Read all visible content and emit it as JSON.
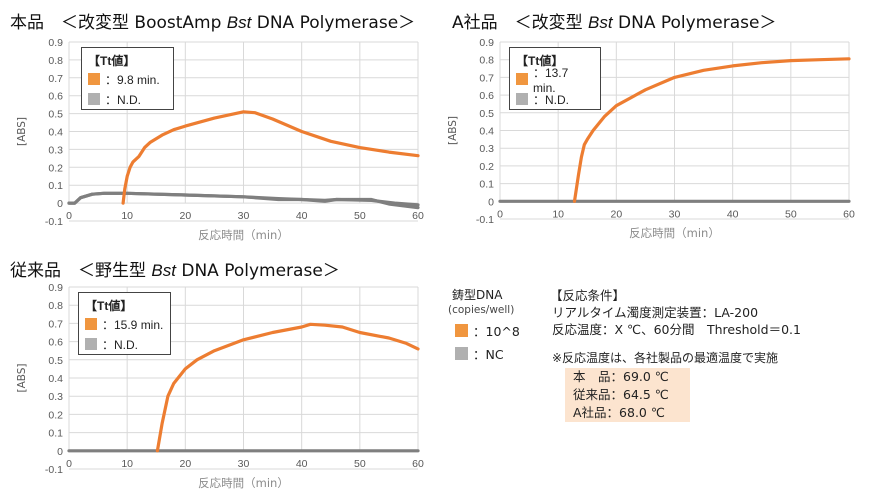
{
  "colors": {
    "sample": "#ed7d31",
    "nc": "#7f7f7f",
    "legend_sample": "#f0963f",
    "legend_nc": "#b0b0b0",
    "grid": "#d9d9d9",
    "temp_box": "#fce4cf"
  },
  "chart_data": [
    {
      "type": "line",
      "title_prefix": "本品　＜改変型 BoostAmp ",
      "title_italic": "Bst",
      "title_suffix": " DNA Polymerase＞",
      "xlabel": "反応時間（min）",
      "ylabel": "[ABS]",
      "xlim": [
        0,
        60
      ],
      "ylim": [
        -0.1,
        0.9
      ],
      "xticks": [
        0,
        10,
        20,
        30,
        40,
        50,
        60
      ],
      "yticks": [
        -0.1,
        0,
        0.1,
        0.2,
        0.3,
        0.4,
        0.5,
        0.6,
        0.7,
        0.8,
        0.9
      ],
      "grid": true,
      "legend": {
        "title": "【Tt値】",
        "placement": "top-left",
        "entries": [
          "：9.8 min.",
          "：N.D."
        ]
      },
      "series": [
        {
          "name": "10^8",
          "color": "#ed7d31",
          "x": [
            9.3,
            9.6,
            10,
            10.5,
            11,
            12,
            13,
            14,
            16,
            18,
            20,
            25,
            30,
            32,
            35,
            40,
            45,
            50,
            55,
            60
          ],
          "y": [
            0,
            0.08,
            0.15,
            0.2,
            0.23,
            0.26,
            0.31,
            0.34,
            0.38,
            0.41,
            0.43,
            0.475,
            0.51,
            0.505,
            0.47,
            0.4,
            0.345,
            0.31,
            0.285,
            0.265
          ]
        },
        {
          "name": "NC",
          "color": "#7f7f7f",
          "x": [
            0,
            1,
            2,
            4,
            6,
            10,
            20,
            30,
            36,
            40,
            44,
            46,
            52,
            56,
            60
          ],
          "y": [
            0,
            0,
            0.03,
            0.05,
            0.055,
            0.055,
            0.045,
            0.035,
            0.02,
            0.02,
            0.01,
            0.02,
            0.015,
            0,
            -0.01
          ]
        },
        {
          "name": "NC",
          "color": "#7f7f7f",
          "x": [
            0,
            1,
            2,
            4,
            6,
            10,
            20,
            30,
            36,
            40,
            44,
            46,
            52,
            55,
            60
          ],
          "y": [
            0,
            0,
            0.03,
            0.05,
            0.055,
            0.055,
            0.045,
            0.035,
            0.025,
            0.02,
            0.015,
            0.02,
            0.02,
            -0.005,
            -0.025
          ]
        }
      ]
    },
    {
      "type": "line",
      "title_prefix": "A社品　＜改変型 ",
      "title_italic": "Bst",
      "title_suffix": " DNA Polymerase＞",
      "xlabel": "反応時間（min）",
      "ylabel": "[ABS]",
      "xlim": [
        0,
        60
      ],
      "ylim": [
        -0.1,
        0.9
      ],
      "xticks": [
        0,
        10,
        20,
        30,
        40,
        50,
        60
      ],
      "yticks": [
        -0.1,
        0,
        0.1,
        0.2,
        0.3,
        0.4,
        0.5,
        0.6,
        0.7,
        0.8,
        0.9
      ],
      "grid": true,
      "legend": {
        "title": "【Tt値】",
        "placement": "top-left",
        "entries": [
          "：13.7 min.",
          "：N.D."
        ]
      },
      "series": [
        {
          "name": "10^8",
          "color": "#ed7d31",
          "x": [
            12.8,
            13.5,
            14,
            14.5,
            15,
            16,
            18,
            20,
            25,
            30,
            35,
            40,
            45,
            50,
            55,
            60
          ],
          "y": [
            0,
            0.15,
            0.25,
            0.32,
            0.35,
            0.4,
            0.48,
            0.54,
            0.63,
            0.7,
            0.74,
            0.765,
            0.783,
            0.795,
            0.8,
            0.805
          ]
        },
        {
          "name": "NC",
          "color": "#7f7f7f",
          "x": [
            0,
            60
          ],
          "y": [
            0,
            0
          ]
        }
      ]
    },
    {
      "type": "line",
      "title_prefix": "従来品　＜野生型 ",
      "title_italic": "Bst",
      "title_suffix": " DNA Polymerase＞",
      "xlabel": "反応時間（min）",
      "ylabel": "[ABS]",
      "xlim": [
        0,
        60
      ],
      "ylim": [
        -0.1,
        0.9
      ],
      "xticks": [
        0,
        10,
        20,
        30,
        40,
        50,
        60
      ],
      "yticks": [
        -0.1,
        0,
        0.1,
        0.2,
        0.3,
        0.4,
        0.5,
        0.6,
        0.7,
        0.8,
        0.9
      ],
      "grid": true,
      "legend": {
        "title": "【Tt値】",
        "placement": "top-left",
        "entries": [
          "：15.9 min.",
          "：N.D."
        ]
      },
      "series": [
        {
          "name": "10^8",
          "color": "#ed7d31",
          "x": [
            15.2,
            16,
            17,
            18,
            20,
            22,
            25,
            30,
            35,
            40,
            41.5,
            44,
            47,
            50,
            55,
            58,
            60
          ],
          "y": [
            0,
            0.15,
            0.3,
            0.37,
            0.45,
            0.5,
            0.55,
            0.61,
            0.65,
            0.68,
            0.695,
            0.69,
            0.68,
            0.65,
            0.62,
            0.59,
            0.56
          ]
        },
        {
          "name": "NC",
          "color": "#7f7f7f",
          "x": [
            0,
            60
          ],
          "y": [
            0,
            0
          ]
        }
      ]
    }
  ],
  "template_legend": {
    "title": "鋳型DNA",
    "unit": "(copies/well)",
    "entries": [
      "：10^8",
      "：NC"
    ]
  },
  "conditions": {
    "heading": "【反応条件】",
    "device": "リアルタイム濁度測定装置：LA-200",
    "temp": "反応温度：X ℃、60分間　Threshold＝0.1",
    "note": "※反応温度は、各社製品の最適温度で実施",
    "temps": [
      "本　品：69.0 ℃",
      "従来品：64.5 ℃",
      "A社品：68.0 ℃"
    ]
  }
}
